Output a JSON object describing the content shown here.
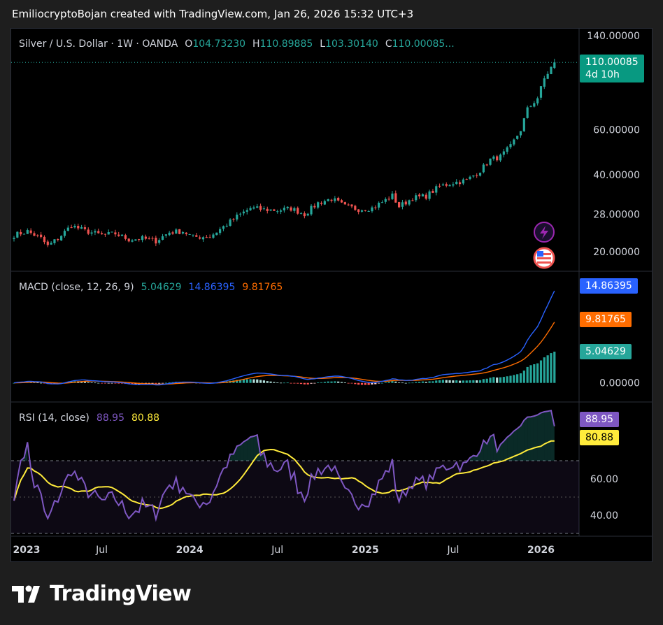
{
  "header": {
    "caption": "EmiliocryptoBojan created with TradingView.com, Jan 26, 2026 15:32 UTC+3"
  },
  "main_legend": {
    "symbol": "Silver / U.S. Dollar · 1W · OANDA",
    "o_label": "O",
    "o_value": "104.73230",
    "h_label": "H",
    "h_value": "110.89885",
    "l_label": "L",
    "l_value": "103.30140",
    "c_label": "C",
    "c_value": "110.00085..."
  },
  "price_tag": {
    "price": "110.00085",
    "countdown": "4d 10h"
  },
  "macd_legend": {
    "title": "MACD (close, 12, 26, 9)",
    "hist": "5.04629",
    "macd": "14.86395",
    "signal": "9.81765"
  },
  "macd_tags": {
    "macd": "14.86395",
    "signal": "9.81765",
    "hist": "5.04629"
  },
  "rsi_legend": {
    "title": "RSI (14, close)",
    "rsi": "88.95",
    "ma": "80.88"
  },
  "rsi_tags": {
    "rsi": "88.95",
    "ma": "80.88"
  },
  "colors": {
    "up": "#26a69a",
    "down": "#ef5350",
    "macd": "#2962ff",
    "signal": "#ff6d00",
    "rsi": "#7e57c2",
    "rsi_ma": "#ffeb3b",
    "tag_green": "#089981"
  },
  "footer": {
    "brand": "TradingView"
  },
  "chart_data": [
    {
      "type": "candlestick",
      "title": "Silver / U.S. Dollar · 1W · OANDA",
      "scale": "log",
      "ylim": [
        17.5,
        140
      ],
      "y_ticks": [
        "140.00000",
        "60.00000",
        "40.00000",
        "28.00000",
        "20.00000"
      ],
      "y_tick_values": [
        140,
        60,
        40,
        28,
        20
      ],
      "x_ticks": [
        "2023",
        "Jul",
        "2024",
        "Jul",
        "2025",
        "Jul",
        "2026"
      ],
      "x_tick_weeks": [
        0,
        26,
        52,
        78,
        104,
        130,
        156
      ],
      "weeks": 161,
      "last_close": 110.00085,
      "anchors_week_close": [
        [
          0,
          23.2
        ],
        [
          4,
          24.0
        ],
        [
          8,
          22.5
        ],
        [
          10,
          21.0
        ],
        [
          13,
          22.5
        ],
        [
          17,
          25.3
        ],
        [
          21,
          24.1
        ],
        [
          26,
          23.2
        ],
        [
          30,
          23.5
        ],
        [
          34,
          22.3
        ],
        [
          38,
          22.5
        ],
        [
          42,
          22.0
        ],
        [
          46,
          23.8
        ],
        [
          50,
          24.0
        ],
        [
          53,
          22.8
        ],
        [
          58,
          22.9
        ],
        [
          62,
          25.0
        ],
        [
          66,
          27.4
        ],
        [
          70,
          29.6
        ],
        [
          74,
          29.2
        ],
        [
          78,
          29.0
        ],
        [
          82,
          29.5
        ],
        [
          86,
          28.0
        ],
        [
          90,
          31.0
        ],
        [
          94,
          32.2
        ],
        [
          98,
          30.0
        ],
        [
          102,
          29.3
        ],
        [
          106,
          29.6
        ],
        [
          110,
          31.8
        ],
        [
          112,
          33.1
        ],
        [
          114,
          30.0
        ],
        [
          118,
          32.4
        ],
        [
          122,
          33.0
        ],
        [
          126,
          36.0
        ],
        [
          130,
          37.2
        ],
        [
          134,
          38.0
        ],
        [
          138,
          41.5
        ],
        [
          141,
          45.8
        ],
        [
          144,
          47.0
        ],
        [
          147,
          51.5
        ],
        [
          150,
          60.0
        ],
        [
          152,
          72.0
        ],
        [
          155,
          80.0
        ],
        [
          157,
          95.0
        ],
        [
          159,
          105.0
        ],
        [
          160,
          110.0
        ]
      ]
    },
    {
      "type": "macd",
      "title": "MACD (close, 12, 26, 9)",
      "ylim": [
        -1.5,
        16
      ],
      "y_ticks": [
        "0.00000"
      ],
      "last": {
        "histogram": 5.04629,
        "macd": 14.86395,
        "signal": 9.81765
      }
    },
    {
      "type": "rsi",
      "title": "RSI (14, close)",
      "ylim": [
        30,
        100
      ],
      "y_ticks": [
        "60.00",
        "40.00"
      ],
      "y_tick_values": [
        60,
        40
      ],
      "bands": [
        70,
        30
      ],
      "last": {
        "rsi": 88.95,
        "ma": 80.88
      }
    }
  ]
}
